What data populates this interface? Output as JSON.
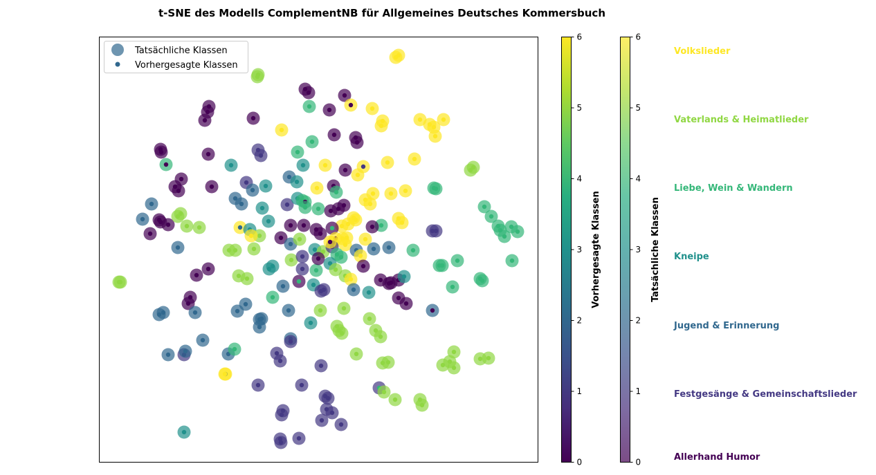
{
  "chart_data": {
    "type": "scatter",
    "title": "t-SNE des Modells ComplementNB für Allgemeines Deutsches Kommersbuch",
    "legend": {
      "placement": "top-left",
      "entries": [
        "Tatsächliche Klassen",
        "Vorhergesagte Klassen"
      ]
    },
    "grid": false,
    "axes_ticks_visible": false,
    "colormap": "viridis",
    "colorbars": [
      {
        "label": "Vorhergesagte Klassen",
        "range": [
          0,
          6
        ],
        "ticks": [
          "0",
          "1",
          "2",
          "3",
          "4",
          "5",
          "6"
        ],
        "alpha": 1.0
      },
      {
        "label": "Tatsächliche Klassen",
        "range": [
          0,
          6
        ],
        "ticks": [
          "0",
          "1",
          "2",
          "3",
          "4",
          "5",
          "6"
        ],
        "alpha": 0.7
      }
    ],
    "class_names": [
      "Allerhand Humor",
      "Festgesänge & Gemeinschaftslieder",
      "Jugend & Erinnerung",
      "Kneipe",
      "Liebe, Wein & Wandern",
      "Vaterlands & Heimatlieder",
      "Volkslieder"
    ],
    "class_colors": [
      "#440154",
      "#443983",
      "#31688e",
      "#21918c",
      "#35b779",
      "#90d743",
      "#fde725"
    ],
    "points": [
      [
        576,
        80,
        6,
        6
      ],
      [
        572,
        83,
        6,
        6
      ],
      [
        373,
        108,
        5,
        5
      ],
      [
        372,
        111,
        5,
        5
      ],
      [
        441,
        129,
        0,
        0
      ],
      [
        446,
        134,
        0,
        0
      ],
      [
        498,
        138,
        0,
        0
      ],
      [
        507,
        152,
        6,
        0
      ],
      [
        302,
        154,
        0,
        0
      ],
      [
        300,
        162,
        0,
        0
      ],
      [
        296,
        174,
        0,
        0
      ],
      [
        366,
        171,
        0,
        0
      ],
      [
        447,
        154,
        4,
        4
      ],
      [
        476,
        159,
        0,
        0
      ],
      [
        538,
        157,
        6,
        6
      ],
      [
        407,
        188,
        6,
        6
      ],
      [
        451,
        205,
        4,
        4
      ],
      [
        483,
        195,
        0,
        0
      ],
      [
        514,
        199,
        0,
        0
      ],
      [
        516,
        206,
        0,
        0
      ],
      [
        553,
        175,
        6,
        6
      ],
      [
        551,
        182,
        6,
        6
      ],
      [
        607,
        173,
        6,
        6
      ],
      [
        621,
        180,
        6,
        6
      ],
      [
        627,
        184,
        6,
        6
      ],
      [
        641,
        173,
        6,
        6
      ],
      [
        629,
        197,
        6,
        6
      ],
      [
        232,
        216,
        0,
        0
      ],
      [
        233,
        220,
        0,
        0
      ],
      [
        301,
        223,
        0,
        0
      ],
      [
        373,
        217,
        1,
        1
      ],
      [
        377,
        225,
        1,
        1
      ],
      [
        430,
        220,
        4,
        4
      ],
      [
        240,
        238,
        4,
        0
      ],
      [
        334,
        239,
        3,
        3
      ],
      [
        262,
        259,
        0,
        0
      ],
      [
        253,
        270,
        0,
        0
      ],
      [
        258,
        276,
        0,
        0
      ],
      [
        306,
        270,
        0,
        0
      ],
      [
        356,
        264,
        1,
        1
      ],
      [
        365,
        275,
        2,
        2
      ],
      [
        384,
        269,
        3,
        3
      ],
      [
        418,
        256,
        2,
        2
      ],
      [
        429,
        263,
        3,
        3
      ],
      [
        438,
        239,
        3,
        3
      ],
      [
        470,
        239,
        6,
        6
      ],
      [
        499,
        246,
        0,
        0
      ],
      [
        525,
        241,
        6,
        1
      ],
      [
        517,
        253,
        6,
        6
      ],
      [
        560,
        235,
        6,
        6
      ],
      [
        599,
        230,
        6,
        6
      ],
      [
        684,
        242,
        5,
        5
      ],
      [
        680,
        246,
        5,
        5
      ],
      [
        458,
        272,
        6,
        6
      ],
      [
        482,
        269,
        0,
        0
      ],
      [
        486,
        278,
        4,
        4
      ],
      [
        539,
        280,
        6,
        6
      ],
      [
        528,
        289,
        6,
        6
      ],
      [
        535,
        295,
        6,
        6
      ],
      [
        565,
        280,
        6,
        6
      ],
      [
        586,
        276,
        6,
        6
      ],
      [
        627,
        272,
        4,
        4
      ],
      [
        630,
        273,
        4,
        4
      ],
      [
        219,
        295,
        2,
        2
      ],
      [
        206,
        317,
        2,
        2
      ],
      [
        230,
        318,
        0,
        0
      ],
      [
        232,
        321,
        0,
        0
      ],
      [
        243,
        325,
        0,
        0
      ],
      [
        217,
        338,
        0,
        0
      ],
      [
        257,
        313,
        5,
        5
      ],
      [
        261,
        309,
        5,
        5
      ],
      [
        270,
        327,
        5,
        5
      ],
      [
        288,
        329,
        5,
        5
      ],
      [
        340,
        287,
        2,
        2
      ],
      [
        349,
        295,
        2,
        2
      ],
      [
        379,
        301,
        3,
        3
      ],
      [
        388,
        320,
        3,
        3
      ],
      [
        415,
        296,
        1,
        1
      ],
      [
        430,
        287,
        3,
        3
      ],
      [
        437,
        290,
        4,
        4
      ],
      [
        441,
        292,
        4,
        0
      ],
      [
        441,
        300,
        4,
        4
      ],
      [
        460,
        302,
        4,
        4
      ],
      [
        478,
        305,
        0,
        0
      ],
      [
        489,
        302,
        0,
        0
      ],
      [
        497,
        297,
        0,
        0
      ],
      [
        511,
        315,
        6,
        6
      ],
      [
        514,
        318,
        6,
        6
      ],
      [
        503,
        324,
        6,
        6
      ],
      [
        494,
        327,
        6,
        6
      ],
      [
        551,
        326,
        4,
        4
      ],
      [
        538,
        328,
        0,
        0
      ],
      [
        576,
        316,
        6,
        6
      ],
      [
        581,
        322,
        6,
        6
      ],
      [
        625,
        334,
        1,
        1
      ],
      [
        630,
        334,
        1,
        1
      ],
      [
        700,
        299,
        4,
        4
      ],
      [
        710,
        313,
        4,
        4
      ],
      [
        720,
        327,
        4,
        4
      ],
      [
        723,
        333,
        4,
        4
      ],
      [
        729,
        342,
        4,
        4
      ],
      [
        739,
        328,
        4,
        4
      ],
      [
        748,
        335,
        4,
        4
      ],
      [
        347,
        329,
        6,
        2
      ],
      [
        361,
        332,
        3,
        3
      ],
      [
        375,
        341,
        5,
        5
      ],
      [
        363,
        341,
        6,
        6
      ],
      [
        406,
        344,
        0,
        0
      ],
      [
        420,
        326,
        0,
        0
      ],
      [
        439,
        326,
        0,
        0
      ],
      [
        457,
        332,
        0,
        0
      ],
      [
        463,
        338,
        0,
        0
      ],
      [
        480,
        330,
        0,
        4
      ],
      [
        485,
        345,
        6,
        0
      ],
      [
        495,
        345,
        6,
        6
      ],
      [
        501,
        344,
        6,
        6
      ],
      [
        499,
        354,
        6,
        6
      ],
      [
        481,
        351,
        6,
        0
      ],
      [
        528,
        346,
        6,
        6
      ],
      [
        257,
        358,
        2,
        2
      ],
      [
        331,
        362,
        5,
        5
      ],
      [
        340,
        362,
        5,
        5
      ],
      [
        367,
        360,
        5,
        5
      ],
      [
        420,
        353,
        2,
        2
      ],
      [
        433,
        346,
        5,
        5
      ],
      [
        455,
        361,
        3,
        3
      ],
      [
        467,
        364,
        5,
        5
      ],
      [
        480,
        357,
        1,
        1
      ],
      [
        477,
        350,
        6,
        0
      ],
      [
        487,
        368,
        4,
        4
      ],
      [
        515,
        362,
        2,
        2
      ],
      [
        540,
        360,
        2,
        2
      ],
      [
        562,
        358,
        2,
        2
      ],
      [
        597,
        362,
        4,
        4
      ],
      [
        521,
        370,
        6,
        6
      ],
      [
        525,
        385,
        0,
        0
      ],
      [
        301,
        389,
        0,
        0
      ],
      [
        284,
        398,
        0,
        0
      ],
      [
        345,
        399,
        5,
        5
      ],
      [
        357,
        403,
        5,
        5
      ],
      [
        389,
        389,
        3,
        3
      ],
      [
        394,
        385,
        3,
        3
      ],
      [
        421,
        376,
        5,
        5
      ],
      [
        437,
        371,
        1,
        1
      ],
      [
        437,
        389,
        1,
        1
      ],
      [
        457,
        391,
        4,
        4
      ],
      [
        460,
        374,
        0,
        0
      ],
      [
        477,
        381,
        3,
        3
      ],
      [
        485,
        390,
        5,
        5
      ],
      [
        493,
        372,
        4,
        4
      ],
      [
        499,
        399,
        5,
        5
      ],
      [
        507,
        404,
        6,
        6
      ],
      [
        635,
        384,
        4,
        4
      ],
      [
        639,
        384,
        4,
        4
      ],
      [
        661,
        377,
        4,
        4
      ],
      [
        172,
        408,
        5,
        5
      ],
      [
        174,
        408,
        5,
        5
      ],
      [
        275,
        430,
        0,
        0
      ],
      [
        272,
        439,
        0,
        0
      ],
      [
        230,
        455,
        2,
        2
      ],
      [
        236,
        452,
        2,
        2
      ],
      [
        282,
        452,
        2,
        2
      ],
      [
        343,
        450,
        2,
        2
      ],
      [
        355,
        440,
        2,
        2
      ],
      [
        394,
        430,
        4,
        4
      ],
      [
        409,
        414,
        2,
        2
      ],
      [
        417,
        449,
        2,
        2
      ],
      [
        432,
        407,
        0,
        4
      ],
      [
        453,
        412,
        3,
        3
      ],
      [
        464,
        421,
        1,
        1
      ],
      [
        468,
        419,
        1,
        1
      ],
      [
        497,
        446,
        5,
        5
      ],
      [
        511,
        419,
        2,
        2
      ],
      [
        533,
        423,
        3,
        3
      ],
      [
        550,
        405,
        0,
        0
      ],
      [
        562,
        410,
        0,
        0
      ],
      [
        565,
        409,
        0,
        0
      ],
      [
        576,
        405,
        0,
        0
      ],
      [
        576,
        431,
        0,
        0
      ],
      [
        584,
        400,
        3,
        3
      ],
      [
        587,
        439,
        0,
        0
      ],
      [
        625,
        449,
        2,
        0
      ],
      [
        654,
        415,
        4,
        4
      ],
      [
        694,
        403,
        4,
        4
      ],
      [
        697,
        406,
        4,
        4
      ],
      [
        740,
        377,
        4,
        4
      ],
      [
        375,
        462,
        2,
        2
      ],
      [
        378,
        461,
        2,
        2
      ],
      [
        375,
        473,
        2,
        2
      ],
      [
        449,
        467,
        3,
        3
      ],
      [
        463,
        449,
        5,
        5
      ],
      [
        487,
        472,
        5,
        5
      ],
      [
        490,
        478,
        5,
        5
      ],
      [
        494,
        482,
        5,
        5
      ],
      [
        534,
        461,
        5,
        5
      ],
      [
        543,
        478,
        5,
        5
      ],
      [
        550,
        487,
        5,
        5
      ],
      [
        243,
        513,
        2,
        2
      ],
      [
        266,
        513,
        1,
        1
      ],
      [
        268,
        508,
        2,
        2
      ],
      [
        293,
        492,
        2,
        2
      ],
      [
        330,
        512,
        2,
        2
      ],
      [
        339,
        505,
        4,
        4
      ],
      [
        326,
        541,
        6,
        2
      ],
      [
        325,
        541,
        6,
        6
      ],
      [
        400,
        511,
        1,
        1
      ],
      [
        405,
        522,
        1,
        1
      ],
      [
        420,
        490,
        2,
        2
      ],
      [
        420,
        494,
        1,
        1
      ],
      [
        464,
        529,
        1,
        1
      ],
      [
        515,
        512,
        5,
        5
      ],
      [
        553,
        525,
        5,
        5
      ],
      [
        561,
        524,
        5,
        5
      ],
      [
        640,
        528,
        5,
        5
      ],
      [
        650,
        523,
        5,
        5
      ],
      [
        656,
        532,
        5,
        5
      ],
      [
        656,
        509,
        5,
        5
      ],
      [
        694,
        519,
        5,
        5
      ],
      [
        706,
        518,
        5,
        5
      ],
      [
        373,
        557,
        1,
        1
      ],
      [
        436,
        557,
        1,
        1
      ],
      [
        470,
        573,
        1,
        1
      ],
      [
        474,
        576,
        1,
        1
      ],
      [
        548,
        561,
        1,
        4
      ],
      [
        555,
        567,
        5,
        5
      ],
      [
        571,
        578,
        5,
        5
      ],
      [
        607,
        578,
        5,
        5
      ],
      [
        610,
        586,
        5,
        5
      ],
      [
        472,
        592,
        1,
        1
      ],
      [
        409,
        594,
        1,
        1
      ],
      [
        407,
        600,
        1,
        1
      ],
      [
        465,
        608,
        1,
        1
      ],
      [
        480,
        597,
        1,
        1
      ],
      [
        493,
        614,
        1,
        1
      ],
      [
        266,
        625,
        3,
        3
      ],
      [
        405,
        635,
        1,
        1
      ],
      [
        406,
        640,
        1,
        1
      ],
      [
        432,
        634,
        1,
        1
      ]
    ]
  }
}
